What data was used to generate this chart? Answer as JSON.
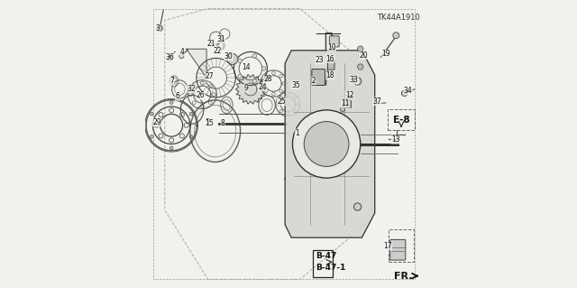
{
  "bg_color": "#f2f2ed",
  "diagram_code": "TK44A1910",
  "fr_label": "FR.",
  "ref_label": "E-8",
  "b47_labels": [
    "B-47",
    "B-47-1"
  ]
}
